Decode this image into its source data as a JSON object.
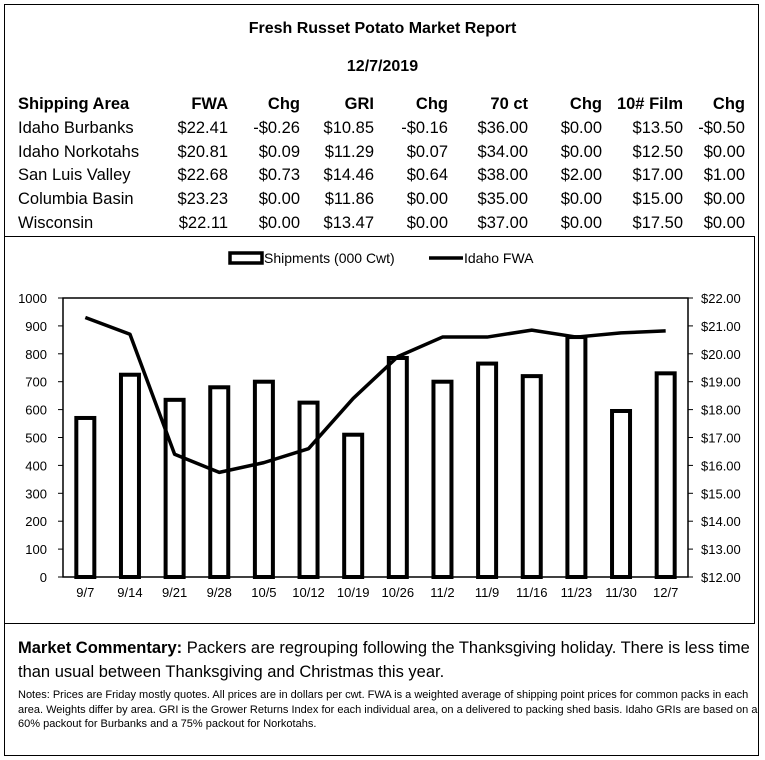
{
  "report": {
    "title": "Fresh Russet Potato Market Report",
    "date": "12/7/2019"
  },
  "table": {
    "headers": [
      "Shipping Area",
      "FWA",
      "Chg",
      "GRI",
      "Chg",
      "70 ct",
      "Chg",
      "10# Film",
      "Chg"
    ],
    "rows": [
      [
        "Idaho Burbanks",
        "$22.41",
        "-$0.26",
        "$10.85",
        "-$0.16",
        "$36.00",
        "$0.00",
        "$13.50",
        "-$0.50"
      ],
      [
        "Idaho Norkotahs",
        "$20.81",
        "$0.09",
        "$11.29",
        "$0.07",
        "$34.00",
        "$0.00",
        "$12.50",
        "$0.00"
      ],
      [
        "San Luis Valley",
        "$22.68",
        "$0.73",
        "$14.46",
        "$0.64",
        "$38.00",
        "$2.00",
        "$17.00",
        "$1.00"
      ],
      [
        "Columbia Basin",
        "$23.23",
        "$0.00",
        "$11.86",
        "$0.00",
        "$35.00",
        "$0.00",
        "$15.00",
        "$0.00"
      ],
      [
        "Wisconsin",
        "$22.11",
        "$0.00",
        "$13.47",
        "$0.00",
        "$37.00",
        "$0.00",
        "$17.50",
        "$0.00"
      ]
    ]
  },
  "chart_data": {
    "type": "bar",
    "categories": [
      "9/7",
      "9/14",
      "9/21",
      "9/28",
      "10/5",
      "10/12",
      "10/19",
      "10/26",
      "11/2",
      "11/9",
      "11/16",
      "11/23",
      "11/30",
      "12/7"
    ],
    "series": [
      {
        "name": "Shipments (000 Cwt)",
        "type": "bar",
        "axis": "left",
        "values": [
          570,
          725,
          635,
          680,
          700,
          625,
          510,
          785,
          700,
          765,
          720,
          860,
          595,
          730
        ]
      },
      {
        "name": "Idaho FWA",
        "type": "line",
        "axis": "right",
        "values": [
          21.3,
          20.7,
          16.4,
          15.75,
          16.1,
          16.6,
          18.4,
          19.9,
          20.6,
          20.6,
          20.85,
          20.6,
          20.75,
          20.82
        ]
      }
    ],
    "left_axis": {
      "min": 0,
      "max": 1000,
      "step": 100,
      "tick_labels": [
        "0",
        "100",
        "200",
        "300",
        "400",
        "500",
        "600",
        "700",
        "800",
        "900",
        "1000"
      ]
    },
    "right_axis": {
      "min": 12,
      "max": 22,
      "step": 1,
      "tick_labels": [
        "$12.00",
        "$13.00",
        "$14.00",
        "$15.00",
        "$16.00",
        "$17.00",
        "$18.00",
        "$19.00",
        "$20.00",
        "$21.00",
        "$22.00"
      ]
    },
    "legend_position": "top-center",
    "grid": false
  },
  "commentary": {
    "label": "Market Commentary:",
    "text": " Packers are regrouping following the Thanksgiving holiday. There is less time than usual between Thanksgiving and Christmas this year."
  },
  "notes": "Notes: Prices are Friday mostly quotes. All prices are in dollars per cwt. FWA is a weighted average of shipping point prices for common packs in each area. Weights differ by area. GRI is the Grower Returns Index for each individual area, on a delivered to packing shed basis. Idaho GRIs are based on a 60% packout for Burbanks and a 75% packout for Norkotahs."
}
